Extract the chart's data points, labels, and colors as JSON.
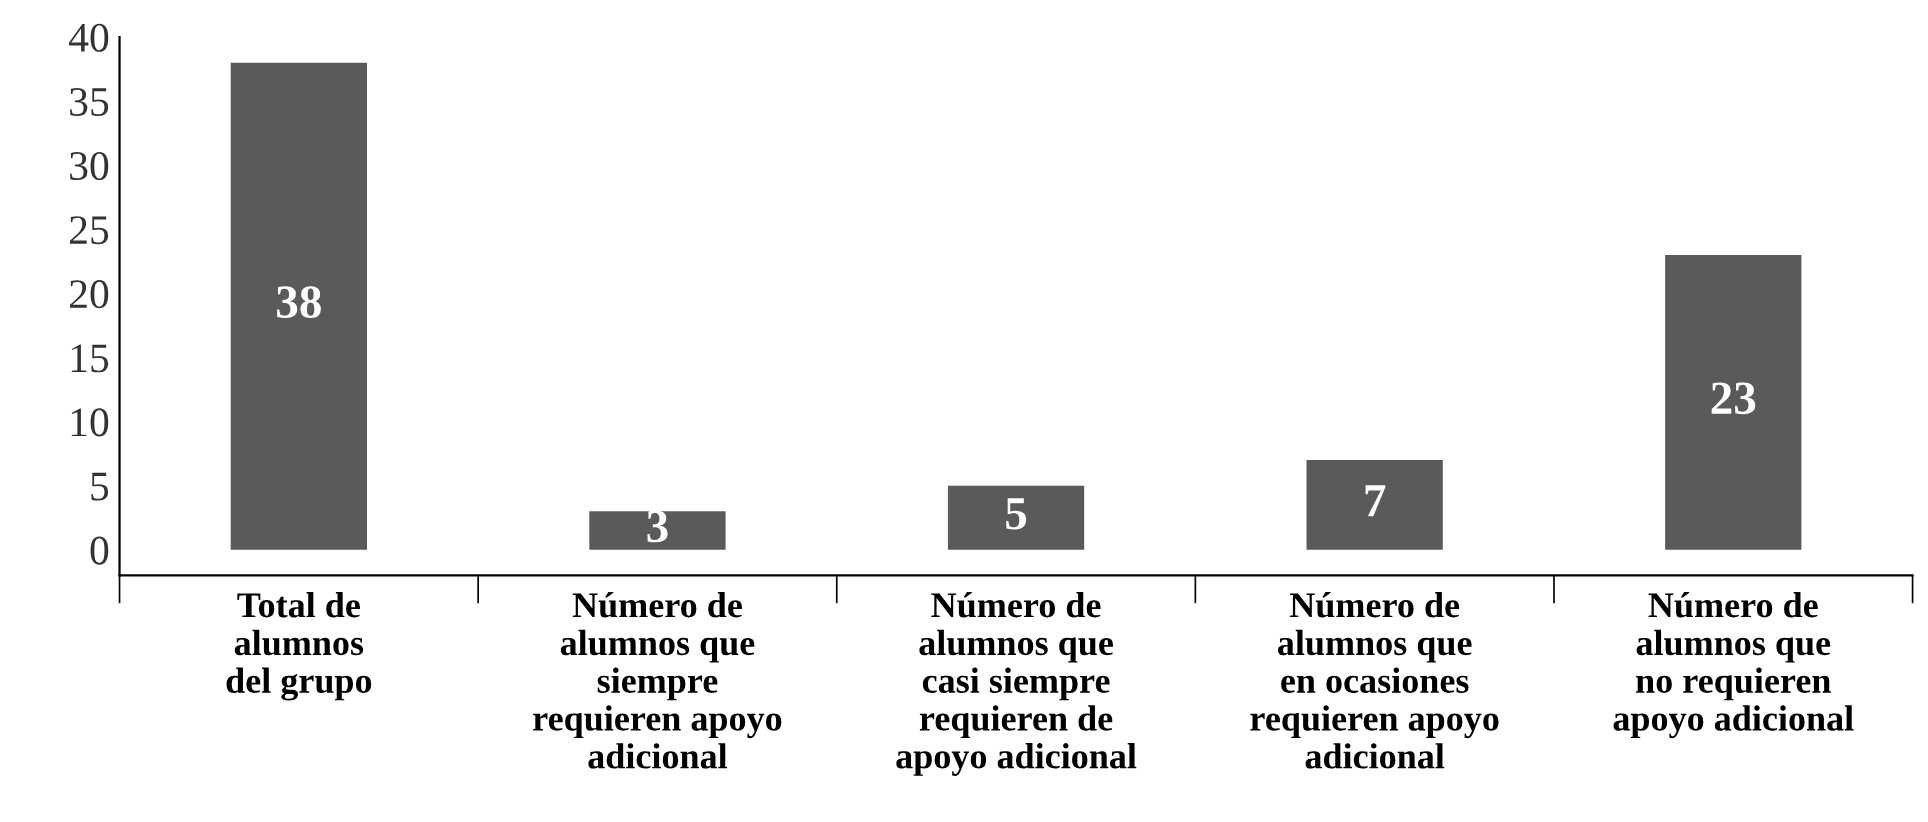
{
  "chart_data": {
    "type": "bar",
    "categories": [
      "Total de\nalumnos\ndel grupo",
      "Número de\nalumnos que\nsiempre\nrequieren apoyo\nadicional",
      "Número de\nalumnos que\ncasi siempre\nrequieren de\napoyo adicional",
      "Número de\nalumnos que\nen ocasiones\nrequieren apoyo\nadicional",
      "Número de\nalumnos que\nno requieren\napoyo adicional"
    ],
    "values": [
      38,
      3,
      5,
      7,
      23
    ],
    "color": "#5a5a5a",
    "data_labels": true,
    "ylim": [
      -2,
      40
    ],
    "yticks": [
      0,
      5,
      10,
      15,
      20,
      25,
      30,
      35,
      40
    ],
    "grid": false,
    "legend": false
  }
}
